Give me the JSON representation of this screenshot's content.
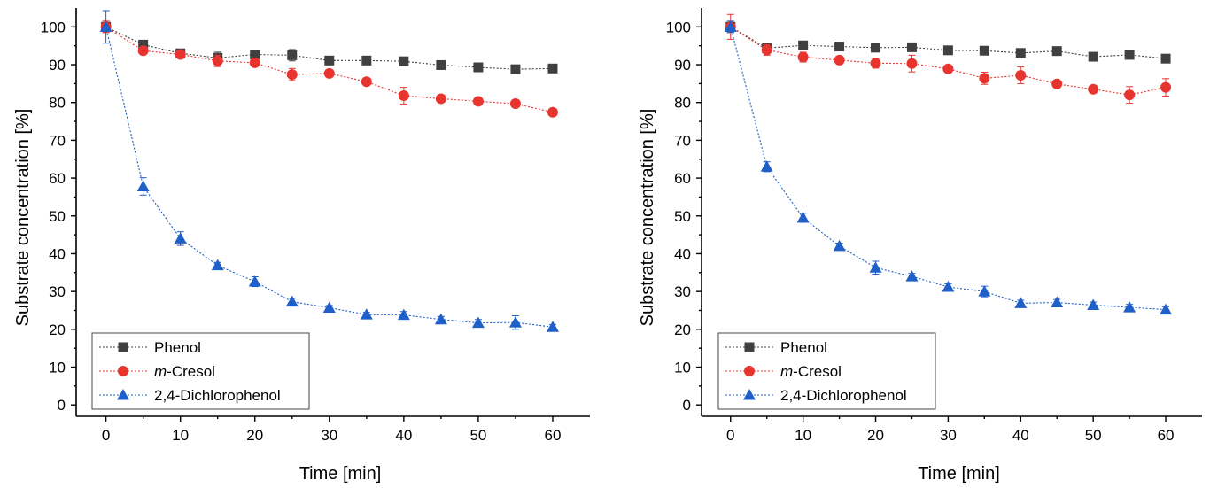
{
  "chart_data": [
    {
      "type": "line",
      "x": [
        0,
        5,
        10,
        15,
        20,
        25,
        30,
        35,
        40,
        45,
        50,
        55,
        60
      ],
      "xlim": [
        -4,
        65
      ],
      "ylim": [
        -3,
        105
      ],
      "xticks": [
        "0",
        "10",
        "20",
        "30",
        "40",
        "50",
        "60"
      ],
      "yticks": [
        "0",
        "10",
        "20",
        "30",
        "40",
        "50",
        "60",
        "70",
        "80",
        "90",
        "100"
      ],
      "xlabel": "Time [min]",
      "ylabel": "Substrate concentration [%]",
      "legend_position": "bottom-left",
      "series": [
        {
          "name": "Phenol",
          "name_parts": [
            "Phenol",
            ""
          ],
          "marker": "square",
          "color": "#404040",
          "values": [
            100,
            95.3,
            93,
            91.8,
            92.7,
            92.5,
            91.1,
            91.1,
            90.9,
            89.9,
            89.3,
            88.8,
            89
          ],
          "errors": [
            1.5,
            0.8,
            0.8,
            1.5,
            0.8,
            1.5,
            0.8,
            0.8,
            0.8,
            0.8,
            0.8,
            0.8,
            0.8
          ]
        },
        {
          "name": "m-Cresol",
          "name_parts": [
            "m",
            "-Cresol"
          ],
          "marker": "circle",
          "color": "#e8342f",
          "values": [
            100,
            93.7,
            92.7,
            91,
            90.5,
            87.4,
            87.7,
            85.5,
            81.8,
            81,
            80.3,
            79.7,
            77.4
          ],
          "errors": [
            1.5,
            0.8,
            0.8,
            1.5,
            0.8,
            1.6,
            0.8,
            0.8,
            2.2,
            0.8,
            0.8,
            0.8,
            0.8
          ]
        },
        {
          "name": "2,4-Dichlorophenol",
          "name_parts": [
            "2,4-Dichlorophenol",
            ""
          ],
          "marker": "triangle",
          "color": "#1f5fc8",
          "values": [
            100,
            57.8,
            44,
            36.9,
            32.6,
            27.3,
            25.7,
            23.9,
            23.8,
            22.6,
            21.7,
            21.8,
            20.6
          ],
          "errors": [
            4.3,
            2.3,
            1.8,
            0.8,
            1.3,
            0.9,
            0.6,
            0.6,
            0.9,
            0.8,
            0.9,
            1.8,
            0.6
          ]
        }
      ]
    },
    {
      "type": "line",
      "x": [
        0,
        5,
        10,
        15,
        20,
        25,
        30,
        35,
        40,
        45,
        50,
        55,
        60
      ],
      "xlim": [
        -4,
        65
      ],
      "ylim": [
        -3,
        105
      ],
      "xticks": [
        "0",
        "10",
        "20",
        "30",
        "40",
        "50",
        "60"
      ],
      "yticks": [
        "0",
        "10",
        "20",
        "30",
        "40",
        "50",
        "60",
        "70",
        "80",
        "90",
        "100"
      ],
      "xlabel": "Time [min]",
      "ylabel": "Substrate concentration [%]",
      "legend_position": "bottom-left",
      "series": [
        {
          "name": "Phenol",
          "name_parts": [
            "Phenol",
            ""
          ],
          "marker": "square",
          "color": "#404040",
          "values": [
            100,
            94.4,
            95.1,
            94.8,
            94.5,
            94.6,
            93.8,
            93.7,
            93.1,
            93.6,
            92.1,
            92.6,
            91.6
          ],
          "errors": [
            1.5,
            1,
            0.8,
            0.8,
            0.8,
            0.8,
            0.8,
            0.8,
            0.8,
            0.8,
            0.8,
            0.8,
            0.8
          ]
        },
        {
          "name": "m-Cresol",
          "name_parts": [
            "m",
            "-Cresol"
          ],
          "marker": "circle",
          "color": "#e8342f",
          "values": [
            100,
            93.9,
            92,
            91.2,
            90.4,
            90.3,
            88.9,
            86.4,
            87.2,
            84.9,
            83.5,
            82,
            84
          ],
          "errors": [
            3.3,
            1.4,
            1.3,
            1,
            1.3,
            2.2,
            0.8,
            1.6,
            2.2,
            0.8,
            0.8,
            2.2,
            2.3
          ]
        },
        {
          "name": "2,4-Dichlorophenol",
          "name_parts": [
            "2,4-Dichlorophenol",
            ""
          ],
          "marker": "triangle",
          "color": "#1f5fc8",
          "values": [
            100,
            63,
            49.5,
            42,
            36.3,
            34,
            31.2,
            30,
            26.9,
            27.1,
            26.4,
            25.8,
            25.2
          ],
          "errors": [
            1.5,
            1.3,
            1.2,
            0.8,
            1.7,
            0.8,
            0.8,
            1.4,
            0.8,
            0.8,
            0.8,
            0.8,
            0.8
          ]
        }
      ]
    }
  ]
}
